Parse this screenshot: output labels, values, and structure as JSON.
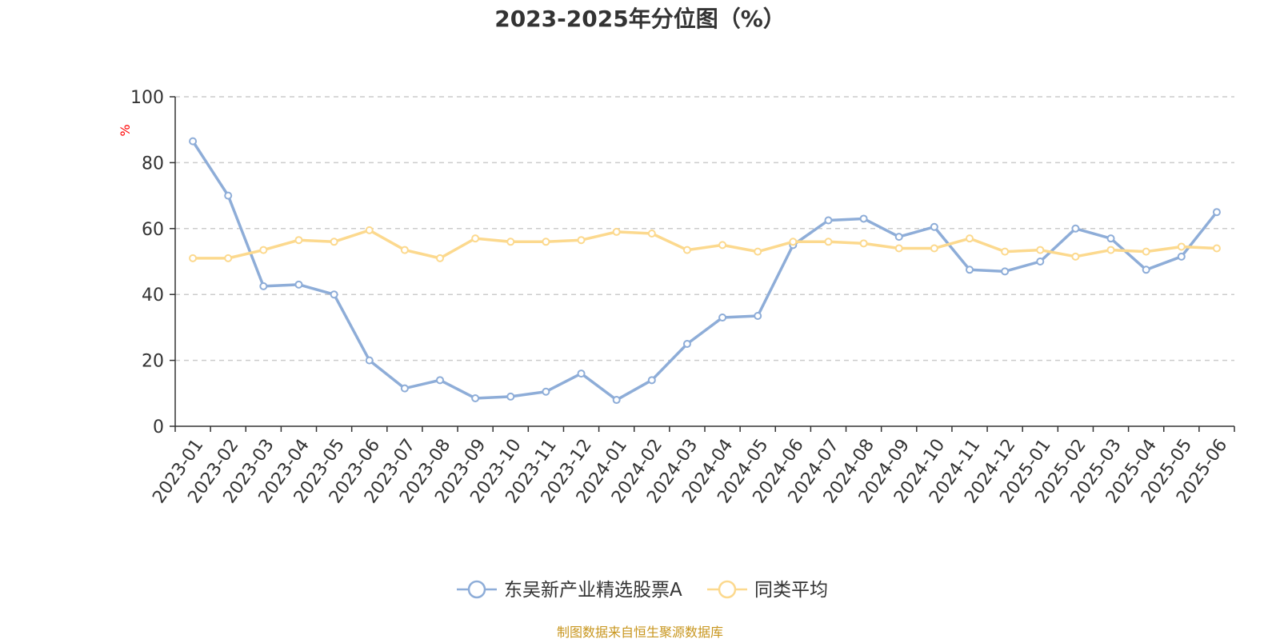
{
  "chart_data": {
    "type": "line",
    "title": "2023-2025年分位图（%）",
    "ylabel": "%",
    "xlabel": "",
    "ylim": [
      0,
      100
    ],
    "yticks": [
      0,
      20,
      40,
      60,
      80,
      100
    ],
    "grid": true,
    "legend_position": "bottom-center",
    "categories": [
      "2023-01",
      "2023-02",
      "2023-03",
      "2023-04",
      "2023-05",
      "2023-06",
      "2023-07",
      "2023-08",
      "2023-09",
      "2023-10",
      "2023-11",
      "2023-12",
      "2024-01",
      "2024-02",
      "2024-03",
      "2024-04",
      "2024-05",
      "2024-06",
      "2024-07",
      "2024-08",
      "2024-09",
      "2024-10",
      "2024-11",
      "2024-12",
      "2025-01",
      "2025-02",
      "2025-03",
      "2025-04",
      "2025-05",
      "2025-06"
    ],
    "series": [
      {
        "name": "东吴新产业精选股票A",
        "color": "#8eadd8",
        "values": [
          86.5,
          70.0,
          42.5,
          43.0,
          40.0,
          20.0,
          11.5,
          14.0,
          8.5,
          9.0,
          10.5,
          16.0,
          8.0,
          14.0,
          25.0,
          33.0,
          33.5,
          55.0,
          62.5,
          63.0,
          57.5,
          60.5,
          47.5,
          47.0,
          50.0,
          60.0,
          57.0,
          47.5,
          51.5,
          65.0
        ]
      },
      {
        "name": "同类平均",
        "color": "#fcd98e",
        "values": [
          51.0,
          51.0,
          53.5,
          56.5,
          56.0,
          59.5,
          53.5,
          51.0,
          57.0,
          56.0,
          56.0,
          56.5,
          59.0,
          58.5,
          53.5,
          55.0,
          53.0,
          56.0,
          56.0,
          55.5,
          54.0,
          54.0,
          57.0,
          53.0,
          53.5,
          51.5,
          53.5,
          53.0,
          54.5,
          54.0
        ]
      }
    ]
  },
  "colors": {
    "title": "#333333",
    "axis": "#333333",
    "grid": "#cccccc",
    "ylabel": "#ff0000",
    "source": "#c8961e"
  },
  "source": "制图数据来自恒生聚源数据库"
}
